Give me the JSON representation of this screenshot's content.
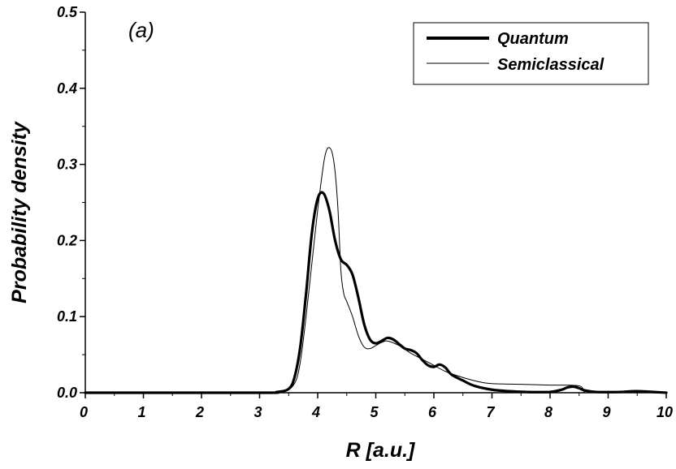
{
  "chart_data": {
    "type": "line",
    "panel_label": "(a)",
    "xlabel": "R [a.u.]",
    "ylabel": "Probability density",
    "xlim": [
      0,
      10
    ],
    "ylim": [
      0,
      0.5
    ],
    "x_ticks": [
      0,
      1,
      2,
      3,
      4,
      5,
      6,
      7,
      8,
      9,
      10
    ],
    "x_tick_labels": [
      "0",
      "1",
      "2",
      "3",
      "4",
      "5",
      "6",
      "7",
      "8",
      "9",
      "10"
    ],
    "y_ticks": [
      0,
      0.1,
      0.2,
      0.3,
      0.4,
      0.5
    ],
    "y_tick_labels": [
      "0.0",
      "0.1",
      "0.2",
      "0.3",
      "0.4",
      "0.5"
    ],
    "grid": false,
    "legend_position": "top-right",
    "series": [
      {
        "name": "Quantum",
        "color": "#000000",
        "style": "thick",
        "x": [
          0,
          3.0,
          3.3,
          3.5,
          3.6,
          3.7,
          3.8,
          3.9,
          4.0,
          4.1,
          4.2,
          4.3,
          4.4,
          4.5,
          4.6,
          4.7,
          4.8,
          4.9,
          5.0,
          5.1,
          5.2,
          5.3,
          5.4,
          5.5,
          5.6,
          5.7,
          5.8,
          5.9,
          6.0,
          6.1,
          6.2,
          6.3,
          6.5,
          6.7,
          7.0,
          7.3,
          7.6,
          8.0,
          8.2,
          8.3,
          8.4,
          8.5,
          8.6,
          8.8,
          9.2,
          9.5,
          10.0
        ],
        "y": [
          0,
          0.0,
          0.001,
          0.005,
          0.02,
          0.06,
          0.13,
          0.21,
          0.255,
          0.262,
          0.24,
          0.2,
          0.175,
          0.168,
          0.155,
          0.125,
          0.09,
          0.07,
          0.065,
          0.068,
          0.072,
          0.07,
          0.064,
          0.058,
          0.056,
          0.052,
          0.043,
          0.036,
          0.034,
          0.037,
          0.033,
          0.024,
          0.016,
          0.009,
          0.004,
          0.002,
          0.001,
          0.001,
          0.004,
          0.007,
          0.008,
          0.006,
          0.003,
          0.001,
          0.001,
          0.002,
          0.0
        ]
      },
      {
        "name": "Semiclassical",
        "color": "#000000",
        "style": "thin",
        "x": [
          0,
          3.0,
          3.4,
          3.6,
          3.7,
          3.8,
          3.9,
          4.0,
          4.1,
          4.15,
          4.2,
          4.25,
          4.3,
          4.35,
          4.4,
          4.45,
          4.5,
          4.6,
          4.7,
          4.8,
          4.9,
          5.0,
          5.1,
          5.2,
          5.4,
          5.6,
          5.8,
          6.0,
          6.2,
          6.5,
          6.8,
          7.0,
          7.5,
          8.0,
          8.5,
          8.6,
          8.8,
          10.0
        ],
        "y": [
          0,
          0.0,
          0.001,
          0.012,
          0.04,
          0.1,
          0.17,
          0.24,
          0.3,
          0.318,
          0.322,
          0.315,
          0.29,
          0.24,
          0.16,
          0.13,
          0.12,
          0.1,
          0.075,
          0.06,
          0.058,
          0.062,
          0.066,
          0.068,
          0.062,
          0.052,
          0.044,
          0.036,
          0.028,
          0.02,
          0.014,
          0.012,
          0.011,
          0.01,
          0.009,
          0.0,
          0.0,
          0.0
        ]
      }
    ]
  }
}
